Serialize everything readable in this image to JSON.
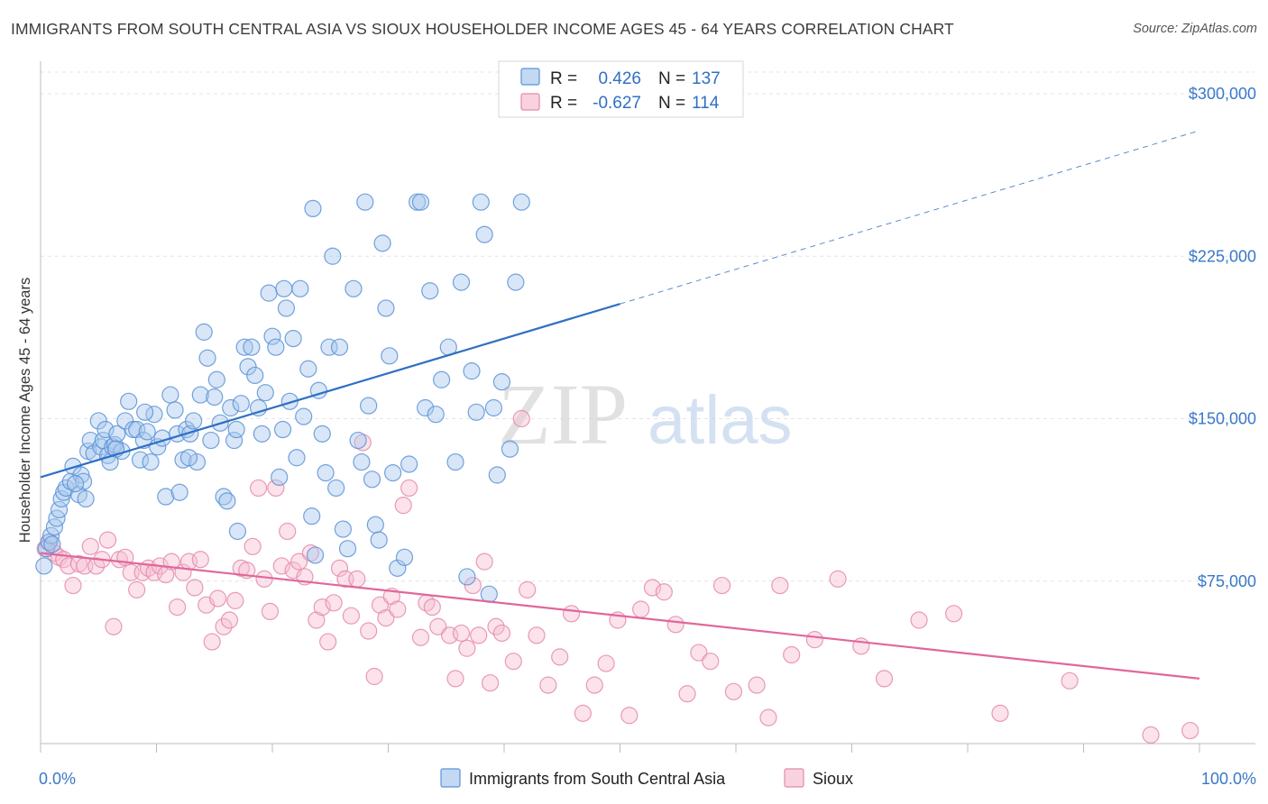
{
  "title": "IMMIGRANTS FROM SOUTH CENTRAL ASIA VS SIOUX HOUSEHOLDER INCOME AGES 45 - 64 YEARS CORRELATION CHART",
  "source": "Source: ZipAtlas.com",
  "watermark": {
    "zip": "ZIP",
    "atlas": "atlas"
  },
  "colors": {
    "blue_fill": "#a9c7ee",
    "blue_stroke": "#5b93d6",
    "blue_line": "#2f6fc4",
    "pink_fill": "#f6bfd2",
    "pink_stroke": "#e48aab",
    "pink_line": "#e0679a",
    "grid": "#e4e4e4",
    "tick_text": "#3a78c8"
  },
  "legend_stats": [
    {
      "r_label": "R =",
      "r_value": "0.426",
      "n_label": "N =",
      "n_value": "137"
    },
    {
      "r_label": "R =",
      "r_value": "-0.627",
      "n_label": "N =",
      "n_value": "114"
    }
  ],
  "chart_data": {
    "type": "scatter",
    "title": "IMMIGRANTS FROM SOUTH CENTRAL ASIA VS SIOUX HOUSEHOLDER INCOME AGES 45 - 64 YEARS CORRELATION CHART",
    "xlabel": "",
    "ylabel": "Householder Income Ages 45 - 64 years",
    "xlim": [
      0,
      100
    ],
    "ylim": [
      0,
      310000
    ],
    "x_tick_labels": [
      "0.0%",
      "100.0%"
    ],
    "y_ticks": [
      75000,
      150000,
      225000,
      300000
    ],
    "y_tick_labels": [
      "$75,000",
      "$150,000",
      "$225,000",
      "$300,000"
    ],
    "grid": true,
    "legend_position": "top-center",
    "series": [
      {
        "name": "Immigrants from South Central Asia",
        "R": 0.426,
        "N": 137,
        "trend": {
          "x0": 0,
          "y0": 123000,
          "x_solid_end": 50,
          "y_solid_end": 203000,
          "x1": 100,
          "y1": 283000
        },
        "points": [
          [
            0.3,
            82000
          ],
          [
            0.5,
            90000
          ],
          [
            0.7,
            93000
          ],
          [
            0.9,
            96000
          ],
          [
            1.2,
            100000
          ],
          [
            1.4,
            104000
          ],
          [
            1.6,
            108000
          ],
          [
            1.8,
            113000
          ],
          [
            2.0,
            116000
          ],
          [
            2.2,
            118000
          ],
          [
            2.6,
            121000
          ],
          [
            2.8,
            128000
          ],
          [
            3.3,
            115000
          ],
          [
            3.5,
            124000
          ],
          [
            3.7,
            121000
          ],
          [
            3.9,
            113000
          ],
          [
            4.1,
            135000
          ],
          [
            4.3,
            140000
          ],
          [
            4.6,
            134000
          ],
          [
            5.0,
            149000
          ],
          [
            5.2,
            137000
          ],
          [
            5.4,
            140000
          ],
          [
            5.6,
            145000
          ],
          [
            5.8,
            133000
          ],
          [
            6.0,
            130000
          ],
          [
            6.2,
            137000
          ],
          [
            6.4,
            138000
          ],
          [
            6.6,
            143000
          ],
          [
            7.0,
            135000
          ],
          [
            7.3,
            149000
          ],
          [
            7.6,
            158000
          ],
          [
            8.0,
            145000
          ],
          [
            8.3,
            145000
          ],
          [
            8.6,
            131000
          ],
          [
            8.9,
            140000
          ],
          [
            9.2,
            144000
          ],
          [
            9.5,
            130000
          ],
          [
            9.8,
            152000
          ],
          [
            10.1,
            137000
          ],
          [
            10.5,
            141000
          ],
          [
            10.8,
            114000
          ],
          [
            11.2,
            161000
          ],
          [
            11.6,
            154000
          ],
          [
            11.8,
            143000
          ],
          [
            12.0,
            116000
          ],
          [
            12.3,
            131000
          ],
          [
            12.6,
            145000
          ],
          [
            12.9,
            143000
          ],
          [
            13.2,
            149000
          ],
          [
            13.5,
            130000
          ],
          [
            13.8,
            161000
          ],
          [
            14.1,
            190000
          ],
          [
            14.4,
            178000
          ],
          [
            14.7,
            140000
          ],
          [
            15.0,
            160000
          ],
          [
            15.2,
            168000
          ],
          [
            15.5,
            148000
          ],
          [
            15.8,
            114000
          ],
          [
            16.1,
            112000
          ],
          [
            16.4,
            155000
          ],
          [
            16.7,
            140000
          ],
          [
            17.0,
            98000
          ],
          [
            17.3,
            157000
          ],
          [
            17.6,
            183000
          ],
          [
            17.9,
            174000
          ],
          [
            18.2,
            183000
          ],
          [
            18.5,
            170000
          ],
          [
            18.8,
            155000
          ],
          [
            19.1,
            143000
          ],
          [
            19.4,
            162000
          ],
          [
            19.7,
            208000
          ],
          [
            20.0,
            188000
          ],
          [
            20.3,
            183000
          ],
          [
            20.6,
            123000
          ],
          [
            20.9,
            145000
          ],
          [
            21.2,
            201000
          ],
          [
            21.5,
            158000
          ],
          [
            21.8,
            187000
          ],
          [
            22.1,
            132000
          ],
          [
            22.4,
            210000
          ],
          [
            22.7,
            151000
          ],
          [
            23.1,
            173000
          ],
          [
            23.4,
            105000
          ],
          [
            23.7,
            87000
          ],
          [
            24.0,
            163000
          ],
          [
            24.3,
            143000
          ],
          [
            24.6,
            125000
          ],
          [
            24.9,
            183000
          ],
          [
            25.2,
            225000
          ],
          [
            25.5,
            118000
          ],
          [
            25.8,
            183000
          ],
          [
            26.1,
            99000
          ],
          [
            26.5,
            90000
          ],
          [
            27.0,
            210000
          ],
          [
            27.4,
            140000
          ],
          [
            27.7,
            130000
          ],
          [
            28.0,
            250000
          ],
          [
            28.3,
            156000
          ],
          [
            28.6,
            122000
          ],
          [
            28.9,
            101000
          ],
          [
            29.2,
            94000
          ],
          [
            29.5,
            231000
          ],
          [
            29.8,
            201000
          ],
          [
            30.1,
            179000
          ],
          [
            30.4,
            125000
          ],
          [
            30.8,
            81000
          ],
          [
            31.4,
            86000
          ],
          [
            31.8,
            129000
          ],
          [
            32.5,
            250000
          ],
          [
            32.8,
            250000
          ],
          [
            33.2,
            155000
          ],
          [
            33.6,
            209000
          ],
          [
            34.1,
            152000
          ],
          [
            34.6,
            168000
          ],
          [
            35.2,
            183000
          ],
          [
            35.8,
            130000
          ],
          [
            36.3,
            213000
          ],
          [
            36.8,
            77000
          ],
          [
            37.2,
            172000
          ],
          [
            37.6,
            153000
          ],
          [
            38.0,
            250000
          ],
          [
            38.3,
            235000
          ],
          [
            38.7,
            69000
          ],
          [
            39.1,
            155000
          ],
          [
            39.4,
            124000
          ],
          [
            39.8,
            167000
          ],
          [
            40.5,
            136000
          ],
          [
            41.0,
            213000
          ],
          [
            41.5,
            250000
          ],
          [
            23.5,
            247000
          ],
          [
            6.5,
            136000
          ],
          [
            3.0,
            120000
          ],
          [
            1.0,
            92000
          ],
          [
            9.0,
            153000
          ],
          [
            12.8,
            132000
          ],
          [
            16.9,
            145000
          ],
          [
            21.0,
            210000
          ]
        ]
      },
      {
        "name": "Sioux",
        "R": -0.627,
        "N": 114,
        "trend": {
          "x0": 0,
          "y0": 88000,
          "x1": 100,
          "y1": 30000
        },
        "points": [
          [
            0.4,
            90000
          ],
          [
            0.8,
            93000
          ],
          [
            1.2,
            88000
          ],
          [
            1.6,
            86000
          ],
          [
            2.0,
            85000
          ],
          [
            2.4,
            82000
          ],
          [
            2.8,
            73000
          ],
          [
            3.3,
            83000
          ],
          [
            3.8,
            82000
          ],
          [
            4.3,
            91000
          ],
          [
            4.8,
            82000
          ],
          [
            5.3,
            85000
          ],
          [
            5.8,
            94000
          ],
          [
            6.3,
            54000
          ],
          [
            6.8,
            85000
          ],
          [
            7.3,
            86000
          ],
          [
            7.8,
            79000
          ],
          [
            8.3,
            71000
          ],
          [
            8.8,
            79000
          ],
          [
            9.3,
            81000
          ],
          [
            9.8,
            79000
          ],
          [
            10.3,
            82000
          ],
          [
            10.8,
            78000
          ],
          [
            11.3,
            84000
          ],
          [
            11.8,
            63000
          ],
          [
            12.3,
            79000
          ],
          [
            12.8,
            84000
          ],
          [
            13.3,
            72000
          ],
          [
            13.8,
            85000
          ],
          [
            14.3,
            64000
          ],
          [
            14.8,
            47000
          ],
          [
            15.3,
            67000
          ],
          [
            15.8,
            54000
          ],
          [
            16.3,
            57000
          ],
          [
            16.8,
            66000
          ],
          [
            17.3,
            81000
          ],
          [
            17.8,
            80000
          ],
          [
            18.3,
            91000
          ],
          [
            18.8,
            118000
          ],
          [
            19.3,
            76000
          ],
          [
            19.8,
            61000
          ],
          [
            20.3,
            118000
          ],
          [
            20.8,
            82000
          ],
          [
            21.3,
            98000
          ],
          [
            21.8,
            80000
          ],
          [
            22.3,
            84000
          ],
          [
            22.8,
            77000
          ],
          [
            23.3,
            88000
          ],
          [
            23.8,
            57000
          ],
          [
            24.3,
            63000
          ],
          [
            24.8,
            47000
          ],
          [
            25.3,
            65000
          ],
          [
            25.8,
            81000
          ],
          [
            26.3,
            76000
          ],
          [
            26.8,
            59000
          ],
          [
            27.3,
            76000
          ],
          [
            27.8,
            139000
          ],
          [
            28.3,
            52000
          ],
          [
            28.8,
            31000
          ],
          [
            29.3,
            64000
          ],
          [
            29.8,
            58000
          ],
          [
            30.3,
            68000
          ],
          [
            30.8,
            62000
          ],
          [
            31.3,
            110000
          ],
          [
            31.8,
            118000
          ],
          [
            32.8,
            49000
          ],
          [
            33.3,
            65000
          ],
          [
            33.8,
            63000
          ],
          [
            34.3,
            54000
          ],
          [
            35.3,
            50000
          ],
          [
            35.8,
            30000
          ],
          [
            36.3,
            51000
          ],
          [
            36.8,
            44000
          ],
          [
            37.3,
            73000
          ],
          [
            37.8,
            50000
          ],
          [
            38.3,
            84000
          ],
          [
            38.8,
            28000
          ],
          [
            39.3,
            54000
          ],
          [
            39.8,
            51000
          ],
          [
            40.8,
            38000
          ],
          [
            41.5,
            150000
          ],
          [
            42.0,
            71000
          ],
          [
            42.8,
            50000
          ],
          [
            43.8,
            27000
          ],
          [
            44.8,
            40000
          ],
          [
            45.8,
            60000
          ],
          [
            46.8,
            14000
          ],
          [
            47.8,
            27000
          ],
          [
            48.8,
            37000
          ],
          [
            49.8,
            57000
          ],
          [
            50.8,
            13000
          ],
          [
            51.8,
            62000
          ],
          [
            52.8,
            72000
          ],
          [
            53.8,
            70000
          ],
          [
            54.8,
            55000
          ],
          [
            55.8,
            23000
          ],
          [
            56.8,
            42000
          ],
          [
            57.8,
            38000
          ],
          [
            58.8,
            73000
          ],
          [
            59.8,
            24000
          ],
          [
            61.8,
            27000
          ],
          [
            62.8,
            12000
          ],
          [
            63.8,
            73000
          ],
          [
            64.8,
            41000
          ],
          [
            66.8,
            48000
          ],
          [
            68.8,
            76000
          ],
          [
            70.8,
            45000
          ],
          [
            72.8,
            30000
          ],
          [
            75.8,
            57000
          ],
          [
            78.8,
            60000
          ],
          [
            82.8,
            14000
          ],
          [
            88.8,
            29000
          ],
          [
            95.8,
            4000
          ],
          [
            99.2,
            6000
          ]
        ]
      }
    ]
  },
  "bottom_legend": [
    "Immigrants from South Central Asia",
    "Sioux"
  ]
}
